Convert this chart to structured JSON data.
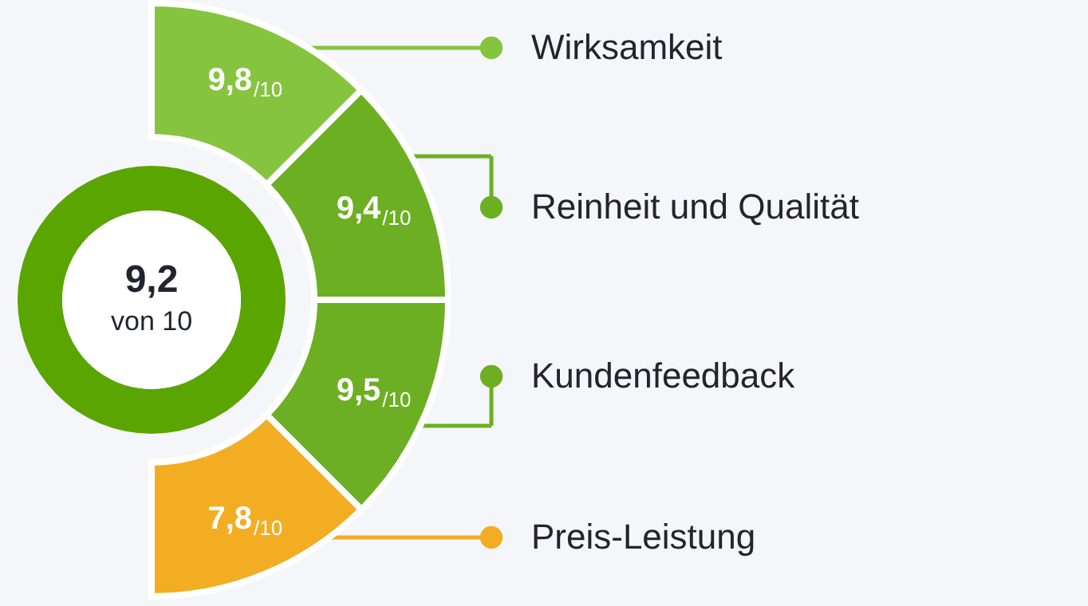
{
  "chart_data": {
    "type": "other",
    "categories": [
      "Wirksamkeit",
      "Reinheit und Qualität",
      "Kundenfeedback",
      "Preis-Leistung"
    ],
    "values": [
      9.8,
      9.4,
      9.5,
      7.8
    ],
    "value_labels": [
      "9,8/10",
      "9,4/10",
      "9,5/10",
      "7,8/10"
    ],
    "colors": [
      "#86c440",
      "#6caf22",
      "#6caf22",
      "#f2ad22"
    ],
    "annotations": [
      "9,2",
      "von 10"
    ]
  }
}
